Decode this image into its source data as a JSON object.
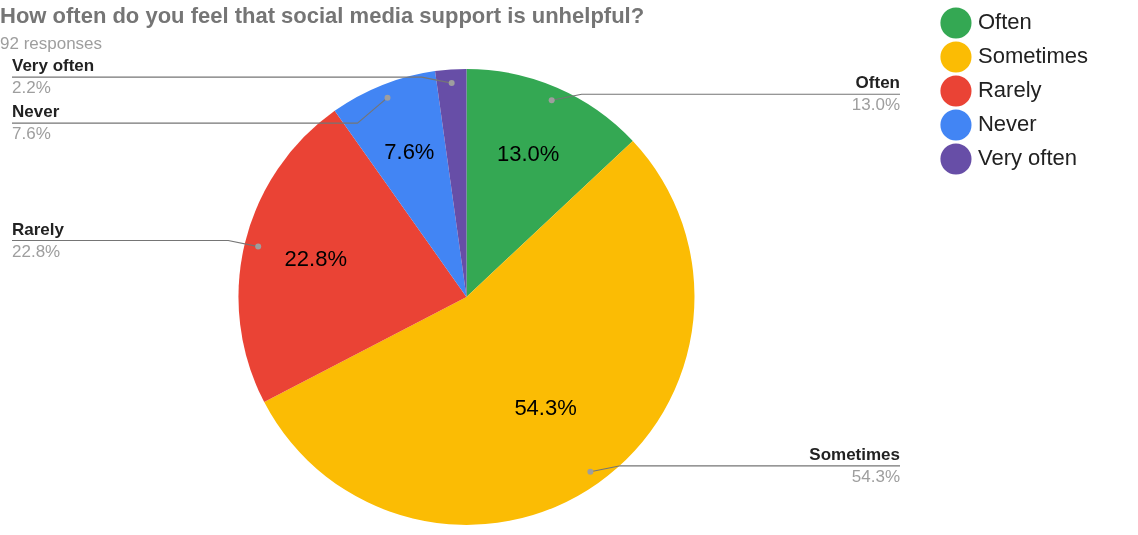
{
  "chart_data": {
    "type": "pie",
    "title": "How often do you feel that social media support is unhelpful?",
    "subtitle": "92 responses",
    "categories": [
      "Often",
      "Sometimes",
      "Rarely",
      "Never",
      "Very often"
    ],
    "values": [
      13.0,
      54.3,
      22.8,
      7.6,
      2.2
    ],
    "colors": [
      "#34a853",
      "#fbbc04",
      "#ea4335",
      "#4285f4",
      "#674ea7"
    ],
    "value_labels": [
      "13.0%",
      "54.3%",
      "22.8%",
      "7.6%",
      "2.2%"
    ],
    "legend": "top right"
  }
}
